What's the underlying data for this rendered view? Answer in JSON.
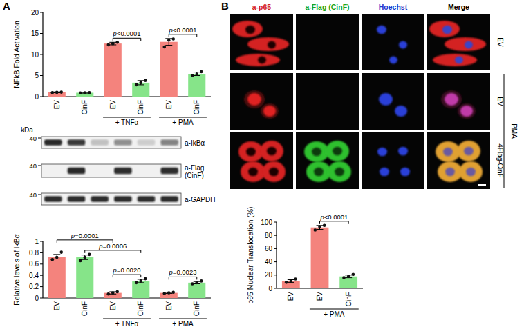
{
  "panel_labels": [
    "A",
    "B"
  ],
  "chart_data": [
    {
      "type": "bar",
      "y_label": "NFkB Fold Activation",
      "categories": [
        "EV",
        "CinF",
        "EV",
        "CinF",
        "EV",
        "CinF"
      ],
      "values": [
        1.0,
        0.9,
        12.6,
        3.3,
        13.0,
        5.4
      ],
      "errors": [
        0.1,
        0.1,
        0.3,
        0.5,
        0.8,
        0.4
      ],
      "points": [
        [
          0.95,
          1.0,
          1.05
        ],
        [
          0.85,
          0.9,
          0.95
        ],
        [
          12.3,
          12.6,
          12.9
        ],
        [
          2.8,
          3.3,
          3.8
        ],
        [
          11.8,
          13.4,
          13.7
        ],
        [
          5.0,
          5.3,
          5.9
        ]
      ],
      "colors": [
        "#f4837d",
        "#86e489",
        "#f4837d",
        "#86e489",
        "#f4837d",
        "#86e489"
      ],
      "ylim": [
        0,
        20
      ],
      "yticks": [
        0,
        5,
        10,
        15,
        20
      ],
      "groups": [
        {
          "label": "+ TNFα",
          "from": 2,
          "to": 3
        },
        {
          "label": "+ PMA",
          "from": 4,
          "to": 5
        }
      ],
      "annotations": [
        {
          "text": "p<0.0001",
          "from": 2,
          "to": 3
        },
        {
          "text": "p<0.0001",
          "from": 4,
          "to": 5
        }
      ]
    },
    {
      "type": "bar",
      "y_label": "Relative levels of IkBα",
      "categories": [
        "EV",
        "CinF",
        "EV",
        "CinF",
        "EV",
        "CinF"
      ],
      "values": [
        0.73,
        0.72,
        0.09,
        0.3,
        0.09,
        0.27
      ],
      "errors": [
        0.04,
        0.04,
        0.02,
        0.03,
        0.01,
        0.02
      ],
      "points": [
        [
          0.68,
          0.72,
          0.81
        ],
        [
          0.66,
          0.72,
          0.77
        ],
        [
          0.07,
          0.09,
          0.11
        ],
        [
          0.27,
          0.3,
          0.34
        ],
        [
          0.08,
          0.09,
          0.1
        ],
        [
          0.25,
          0.27,
          0.3
        ]
      ],
      "colors": [
        "#f4837d",
        "#86e489",
        "#f4837d",
        "#86e489",
        "#f4837d",
        "#86e489"
      ],
      "ylim": [
        0,
        1
      ],
      "yticks": [
        0,
        0.2,
        0.4,
        0.6,
        0.8,
        1
      ],
      "groups": [
        {
          "label": "+ TNFα",
          "from": 2,
          "to": 3
        },
        {
          "label": "+ PMA",
          "from": 4,
          "to": 5
        }
      ],
      "annotations": [
        {
          "text": "p=0.0001",
          "from": 0,
          "to": 2
        },
        {
          "text": "p=0.0006",
          "from": 1,
          "to": 3
        },
        {
          "text": "p=0.0020",
          "from": 2,
          "to": 3
        },
        {
          "text": "p=0.0023",
          "from": 4,
          "to": 5
        }
      ]
    },
    {
      "type": "bar",
      "y_label": "p65 Nuclear Translocation (%)",
      "categories": [
        "EV",
        "EV",
        "CinF"
      ],
      "values": [
        11,
        92,
        18
      ],
      "errors": [
        2,
        3,
        2
      ],
      "points": [
        [
          9,
          11,
          14
        ],
        [
          88,
          93,
          95
        ],
        [
          16,
          18,
          21
        ]
      ],
      "colors": [
        "#f4837d",
        "#f4837d",
        "#86e489"
      ],
      "ylim": [
        0,
        100
      ],
      "yticks": [
        0,
        20,
        40,
        60,
        80,
        100
      ],
      "groups": [
        {
          "label": "+ PMA",
          "from": 1,
          "to": 2
        }
      ],
      "annotations": [
        {
          "text": "p<0.0001",
          "from": 1,
          "to": 2
        }
      ]
    }
  ],
  "western_blot": {
    "unit": "kDa",
    "lanes": 6,
    "rows": [
      {
        "antibody": "a-IkBα",
        "marker": 40,
        "intensities": [
          0.95,
          0.85,
          0.2,
          0.45,
          0.15,
          0.5
        ]
      },
      {
        "antibody": "a-Flag",
        "subtitle": "(CinF)",
        "marker": 40,
        "intensities": [
          0,
          0.95,
          0,
          0.9,
          0,
          0.9
        ]
      },
      {
        "antibody": "a-GAPDH",
        "marker": 40,
        "intensities": [
          0.9,
          0.9,
          0.9,
          0.9,
          0.9,
          0.9
        ]
      }
    ]
  },
  "microscopy": {
    "columns": [
      "a-p65",
      "a-Flag (CinF)",
      "Hoechst",
      "Merge"
    ],
    "column_colors": [
      "#d42020",
      "#1aa51a",
      "#2233cc",
      "#000000"
    ],
    "rows": [
      "EV",
      "EV",
      "4Flag-CinF"
    ],
    "treatment": "PMA"
  }
}
